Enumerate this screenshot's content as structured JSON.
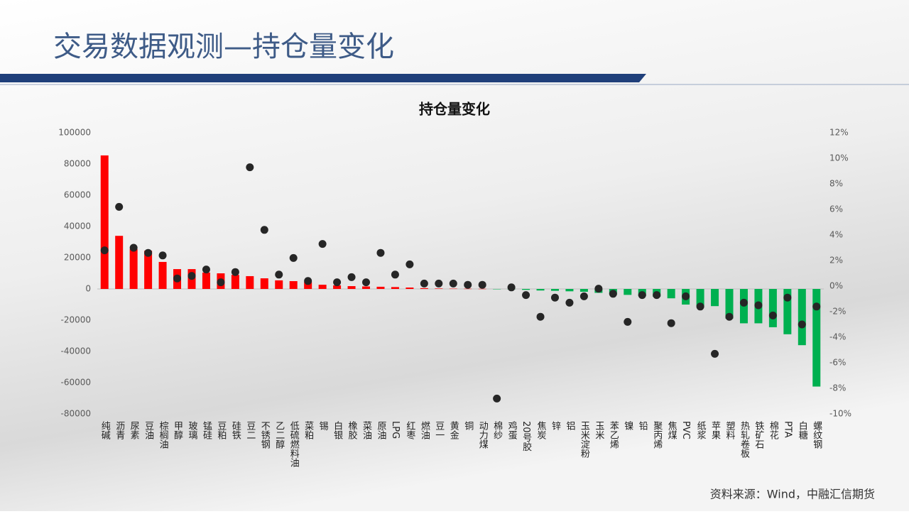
{
  "header": {
    "title": "交易数据观测—持仓量变化"
  },
  "chart_data": {
    "type": "bar_dot",
    "title": "持仓量变化",
    "categories": [
      "纯碱",
      "沥青",
      "尿素",
      "豆油",
      "棕榈油",
      "甲醇",
      "玻璃",
      "锰硅",
      "豆粕",
      "硅铁",
      "豆二",
      "不锈钢",
      "乙二醇",
      "低硫燃料油",
      "菜粕",
      "锡",
      "白银",
      "橡胶",
      "菜油",
      "原油",
      "LPG",
      "红枣",
      "燃油",
      "豆一",
      "黄金",
      "铜",
      "动力煤",
      "棉纱",
      "鸡蛋",
      "20号胶",
      "焦炭",
      "锌",
      "铝",
      "玉米淀粉",
      "玉米",
      "苯乙烯",
      "镍",
      "铅",
      "聚丙烯",
      "焦煤",
      "PVC",
      "纸浆",
      "苹果",
      "塑料",
      "热轧卷板",
      "铁矿石",
      "棉花",
      "PTA",
      "白糖",
      "螺纹钢"
    ],
    "series": [
      {
        "color": "#ff0000",
        "negative_color": "#00b050",
        "values": [
          85500,
          34000,
          25500,
          24500,
          17300,
          12700,
          12700,
          10500,
          10000,
          9000,
          8200,
          6800,
          5500,
          5000,
          4500,
          2700,
          2300,
          1800,
          1600,
          1400,
          1200,
          900,
          500,
          300,
          200,
          150,
          100,
          -100,
          -300,
          -600,
          -1000,
          -1200,
          -1500,
          -1800,
          -2500,
          -3500,
          -3800,
          -4500,
          -5000,
          -6000,
          -10000,
          -11000,
          -11000,
          -19000,
          -22000,
          -22000,
          -24500,
          -29000,
          -36000,
          -62500
        ]
      },
      {
        "axis": "y2",
        "color": "#262626",
        "values": [
          2.8,
          6.2,
          3.0,
          2.6,
          2.4,
          0.6,
          0.8,
          1.3,
          0.3,
          1.1,
          9.3,
          4.4,
          0.9,
          2.2,
          0.4,
          3.3,
          0.3,
          0.7,
          0.3,
          2.6,
          0.9,
          1.7,
          0.2,
          0.2,
          0.2,
          0.1,
          0.1,
          -8.8,
          -0.1,
          -0.7,
          -2.4,
          -0.9,
          -1.3,
          -0.8,
          -0.2,
          -0.6,
          -2.8,
          -0.7,
          -0.7,
          -2.9,
          -0.8,
          -1.6,
          -5.3,
          -2.4,
          -1.3,
          -1.5,
          -2.3,
          -0.9,
          -3.0,
          -1.6
        ]
      }
    ],
    "ylim": [
      -80000,
      100000
    ],
    "yticks": [
      -80000,
      -60000,
      -40000,
      -20000,
      0,
      20000,
      40000,
      60000,
      80000,
      100000
    ],
    "y2lim": [
      -10,
      12
    ],
    "y2ticks": [
      {
        "value": -10,
        "label": "-10%"
      },
      {
        "value": -8,
        "label": "-8%"
      },
      {
        "value": -6,
        "label": "-6%"
      },
      {
        "value": -4,
        "label": "-4%"
      },
      {
        "value": -2,
        "label": "-2%"
      },
      {
        "value": 0,
        "label": "0%"
      },
      {
        "value": 2,
        "label": "2%"
      },
      {
        "value": 4,
        "label": "4%"
      },
      {
        "value": 6,
        "label": "6%"
      },
      {
        "value": 8,
        "label": "8%"
      },
      {
        "value": 10,
        "label": "10%"
      },
      {
        "value": 12,
        "label": "12%"
      }
    ]
  },
  "footer": {
    "source": "资料来源：Wind，中融汇信期货"
  }
}
